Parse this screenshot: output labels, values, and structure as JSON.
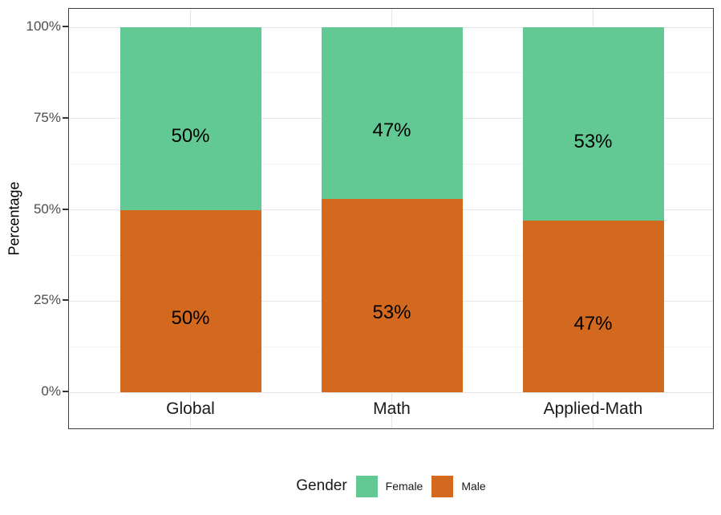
{
  "chart_data": {
    "type": "bar",
    "variant": "stacked-percent",
    "categories": [
      "Global",
      "Math",
      "Applied-Math"
    ],
    "series": [
      {
        "name": "Female",
        "color": "#63C994",
        "values": [
          50,
          47,
          53
        ],
        "labels": [
          "50%",
          "47%",
          "53%"
        ]
      },
      {
        "name": "Male",
        "color": "#D2691E",
        "values": [
          50,
          53,
          47
        ],
        "labels": [
          "50%",
          "53%",
          "47%"
        ]
      }
    ],
    "ylabel": "Percentage",
    "xlabel": "",
    "ylim": [
      0,
      100
    ],
    "y_major_breaks": [
      0,
      25,
      50,
      75,
      100
    ],
    "y_minor_breaks": [
      12.5,
      37.5,
      62.5,
      87.5
    ],
    "y_tick_labels": [
      "0%",
      "25%",
      "50%",
      "75%",
      "100%"
    ],
    "grid": true,
    "legend": {
      "title": "Gender",
      "position": "bottom"
    },
    "colors": {
      "grid_major": "#e6e6e6",
      "grid_minor": "#f3f3f3",
      "panel_border": "#3f3f3f",
      "axis_text": "#4d4d4d",
      "tick_mark": "#333333",
      "label_text": "#000000"
    }
  }
}
